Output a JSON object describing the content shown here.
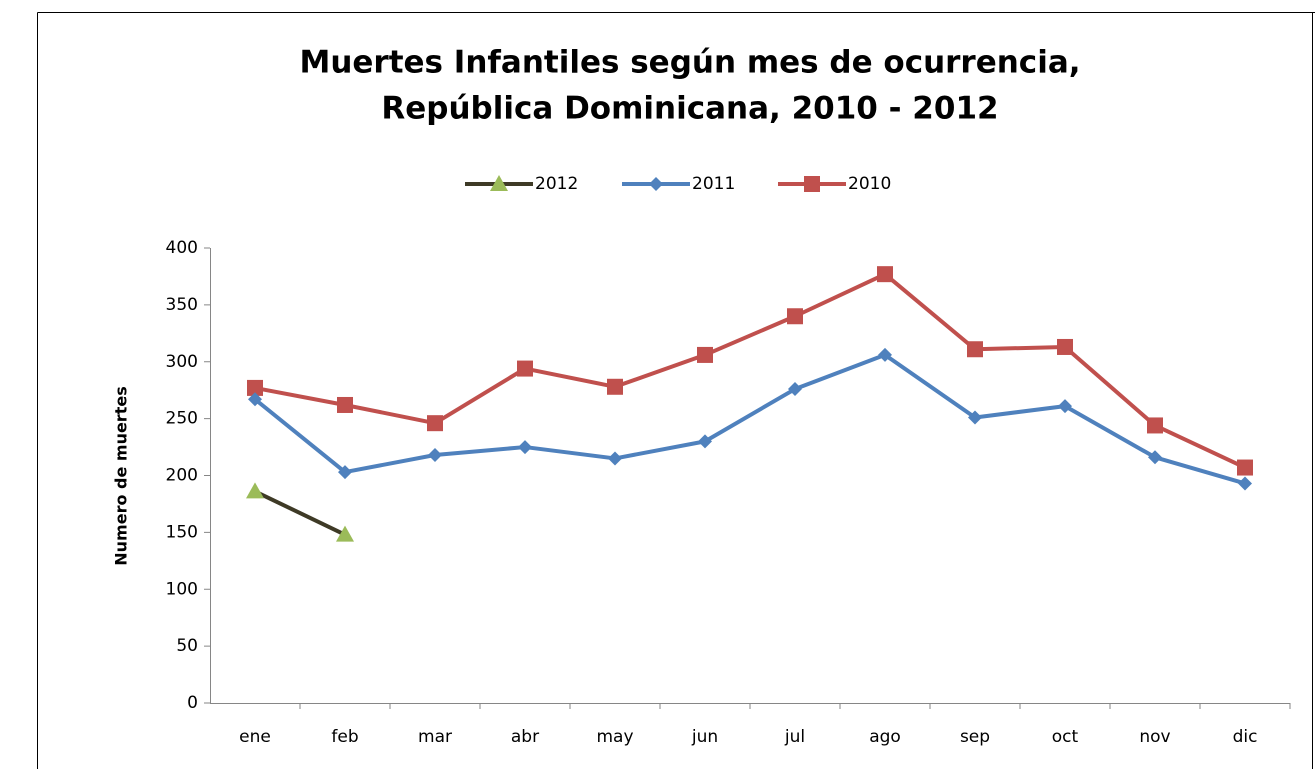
{
  "chart_data": {
    "type": "line",
    "title": [
      "Muertes Infantiles según mes de ocurrencia,",
      "República Dominicana,  2010 - 2012"
    ],
    "y_label": "Numero de muertes",
    "categories": [
      "ene",
      "feb",
      "mar",
      "abr",
      "may",
      "jun",
      "jul",
      "ago",
      "sep",
      "oct",
      "nov",
      "dic"
    ],
    "series": [
      {
        "name": "2012",
        "color": "#3e3a26",
        "marker_color": "#9bbb59",
        "marker": "triangle",
        "values": [
          186,
          148,
          null,
          null,
          null,
          null,
          null,
          null,
          null,
          null,
          null,
          null
        ]
      },
      {
        "name": "2011",
        "color": "#4f81bd",
        "marker_color": "#4f81bd",
        "marker": "diamond",
        "values": [
          267,
          203,
          218,
          225,
          215,
          230,
          276,
          306,
          251,
          261,
          216,
          193
        ]
      },
      {
        "name": "2010",
        "color": "#c0504d",
        "marker_color": "#c0504d",
        "marker": "square",
        "values": [
          277,
          262,
          246,
          294,
          278,
          306,
          340,
          377,
          311,
          313,
          244,
          207
        ]
      }
    ],
    "ylim": [
      0,
      400
    ],
    "yticks": [
      0,
      50,
      100,
      150,
      200,
      250,
      300,
      350,
      400
    ],
    "grid": false,
    "legend": "top"
  }
}
